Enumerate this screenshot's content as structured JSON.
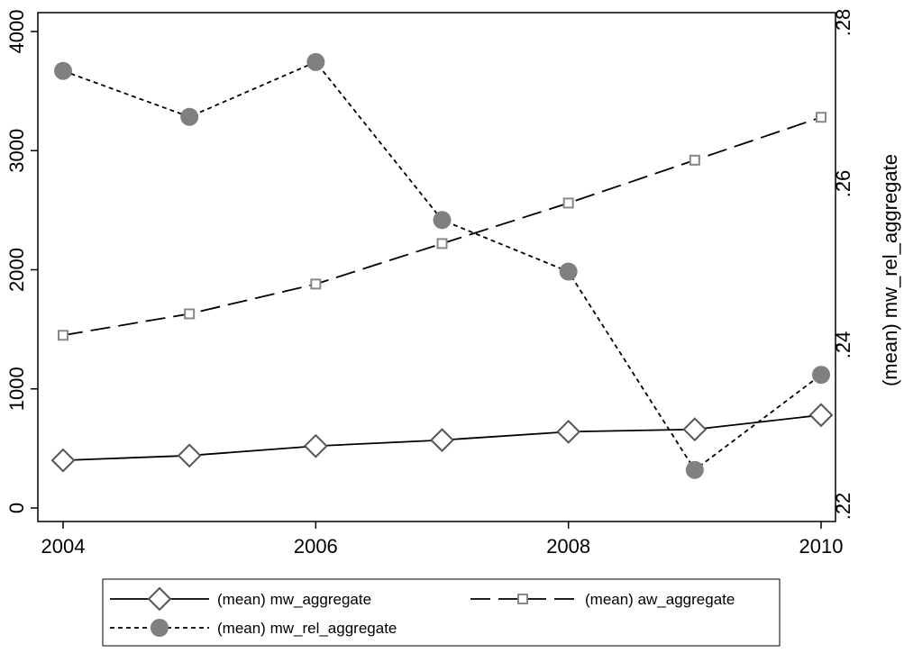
{
  "chart_data": {
    "type": "line",
    "x": [
      2004,
      2005,
      2006,
      2007,
      2008,
      2009,
      2010
    ],
    "x_ticks": [
      "2004",
      "2006",
      "2008",
      "2010"
    ],
    "x_tick_values": [
      2004,
      2006,
      2008,
      2010
    ],
    "xlim": [
      2004,
      2010
    ],
    "ylim_left": [
      0,
      4000
    ],
    "y_left_ticks": [
      "0",
      "1000",
      "2000",
      "3000",
      "4000"
    ],
    "y_left_tick_values": [
      0,
      1000,
      2000,
      3000,
      4000
    ],
    "ylim_right": [
      0.22,
      0.28
    ],
    "y_right_ticks": [
      ".22",
      ".24",
      ".26",
      ".28"
    ],
    "y_right_tick_values": [
      0.22,
      0.24,
      0.26,
      0.28
    ],
    "ylabel_right": "(mean) mw_rel_aggregate",
    "ylabel_left": "",
    "xlabel": "",
    "title": "",
    "grid": false,
    "legend_position": "bottom",
    "series": [
      {
        "name": "(mean) mw_aggregate",
        "axis": "left",
        "style": "solid",
        "marker": "hollow-diamond",
        "color": "#000000",
        "marker_color": "#555555",
        "values": [
          400,
          440,
          520,
          570,
          640,
          660,
          780
        ]
      },
      {
        "name": "(mean) aw_aggregate",
        "axis": "left",
        "style": "long-dash",
        "marker": "hollow-square",
        "color": "#000000",
        "marker_color": "#888888",
        "values": [
          1450,
          1630,
          1880,
          2220,
          2560,
          2920,
          3280
        ]
      },
      {
        "name": "(mean) mw_rel_aggregate",
        "axis": "right",
        "style": "short-dash",
        "marker": "filled-circle",
        "color": "#000000",
        "marker_color": "#808080",
        "values": [
          0.274,
          0.2683,
          0.2751,
          0.2555,
          0.2491,
          0.2245,
          0.2363
        ]
      }
    ]
  }
}
